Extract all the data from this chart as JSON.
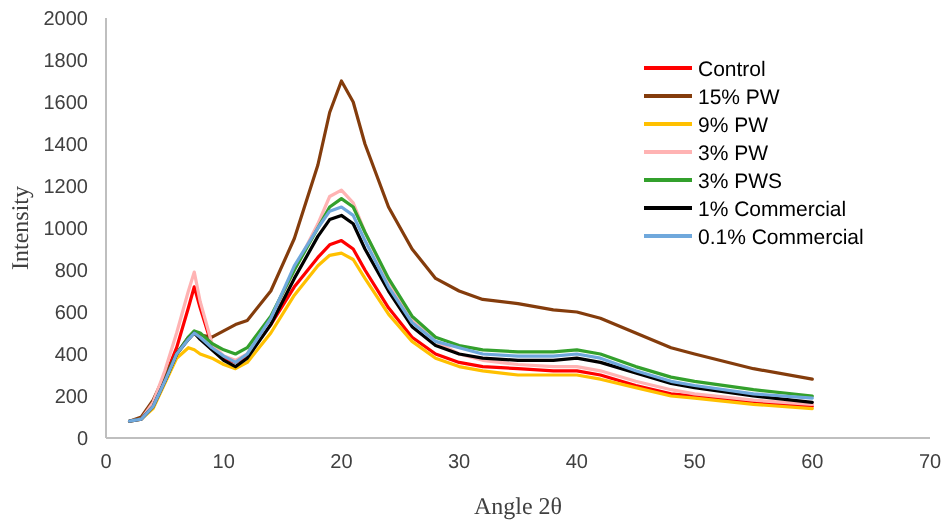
{
  "chart_data": {
    "type": "line",
    "xlabel": "Angle 2θ",
    "ylabel": "Intensity",
    "x": [
      2,
      3,
      4,
      5,
      6,
      7,
      7.5,
      8,
      9,
      10,
      11,
      12,
      14,
      16,
      18,
      19,
      20,
      21,
      22,
      24,
      26,
      28,
      30,
      32,
      35,
      38,
      40,
      42,
      45,
      48,
      50,
      55,
      60
    ],
    "xlim": [
      0,
      70
    ],
    "xticks": [
      0,
      10,
      20,
      30,
      40,
      50,
      60,
      70
    ],
    "ylim": [
      0,
      2000
    ],
    "yticks": [
      0,
      200,
      400,
      600,
      800,
      1000,
      1200,
      1400,
      1600,
      1800,
      2000
    ],
    "grid": false,
    "legend": "top right",
    "series": [
      {
        "name": "Control",
        "color": "#ff0000",
        "values": [
          null,
          null,
          160,
          290,
          430,
          620,
          720,
          620,
          440,
          380,
          360,
          390,
          540,
          720,
          860,
          920,
          940,
          900,
          800,
          620,
          480,
          400,
          360,
          340,
          330,
          320,
          320,
          300,
          250,
          210,
          200,
          170,
          150
        ]
      },
      {
        "name": "15% PW",
        "color": "#843c0c",
        "values": [
          80,
          100,
          180,
          300,
          400,
          480,
          500,
          490,
          480,
          510,
          540,
          560,
          700,
          950,
          1300,
          1550,
          1700,
          1600,
          1400,
          1100,
          900,
          760,
          700,
          660,
          640,
          610,
          600,
          570,
          500,
          430,
          400,
          330,
          280
        ]
      },
      {
        "name": "9% PW",
        "color": "#ffc000",
        "values": [
          80,
          90,
          140,
          260,
          380,
          430,
          420,
          400,
          380,
          350,
          330,
          360,
          500,
          680,
          820,
          870,
          880,
          850,
          760,
          590,
          460,
          380,
          340,
          320,
          300,
          300,
          300,
          280,
          240,
          200,
          190,
          160,
          140
        ]
      },
      {
        "name": "3% PW",
        "color": "#ffb3b3",
        "values": [
          80,
          90,
          170,
          320,
          500,
          700,
          790,
          650,
          450,
          390,
          370,
          400,
          570,
          800,
          1020,
          1150,
          1180,
          1120,
          980,
          750,
          560,
          460,
          400,
          370,
          350,
          340,
          340,
          320,
          270,
          230,
          210,
          180,
          160
        ]
      },
      {
        "name": "3% PWS",
        "color": "#33a02c",
        "values": [
          null,
          null,
          null,
          270,
          400,
          480,
          510,
          500,
          450,
          420,
          400,
          430,
          580,
          800,
          1000,
          1100,
          1140,
          1100,
          980,
          760,
          580,
          480,
          440,
          420,
          410,
          410,
          420,
          400,
          340,
          290,
          270,
          230,
          200
        ]
      },
      {
        "name": "1% Commercial",
        "color": "#000000",
        "values": [
          80,
          90,
          150,
          270,
          400,
          470,
          500,
          470,
          420,
          370,
          340,
          380,
          540,
          760,
          960,
          1040,
          1060,
          1020,
          900,
          700,
          530,
          440,
          400,
          380,
          370,
          370,
          380,
          360,
          310,
          260,
          240,
          200,
          170
        ]
      },
      {
        "name": "0.1% Commercial",
        "color": "#6fa8dc",
        "values": [
          80,
          90,
          150,
          270,
          400,
          470,
          500,
          480,
          430,
          390,
          360,
          400,
          570,
          820,
          1000,
          1080,
          1100,
          1060,
          940,
          720,
          550,
          460,
          430,
          400,
          390,
          390,
          400,
          380,
          320,
          270,
          250,
          210,
          190
        ]
      }
    ]
  }
}
